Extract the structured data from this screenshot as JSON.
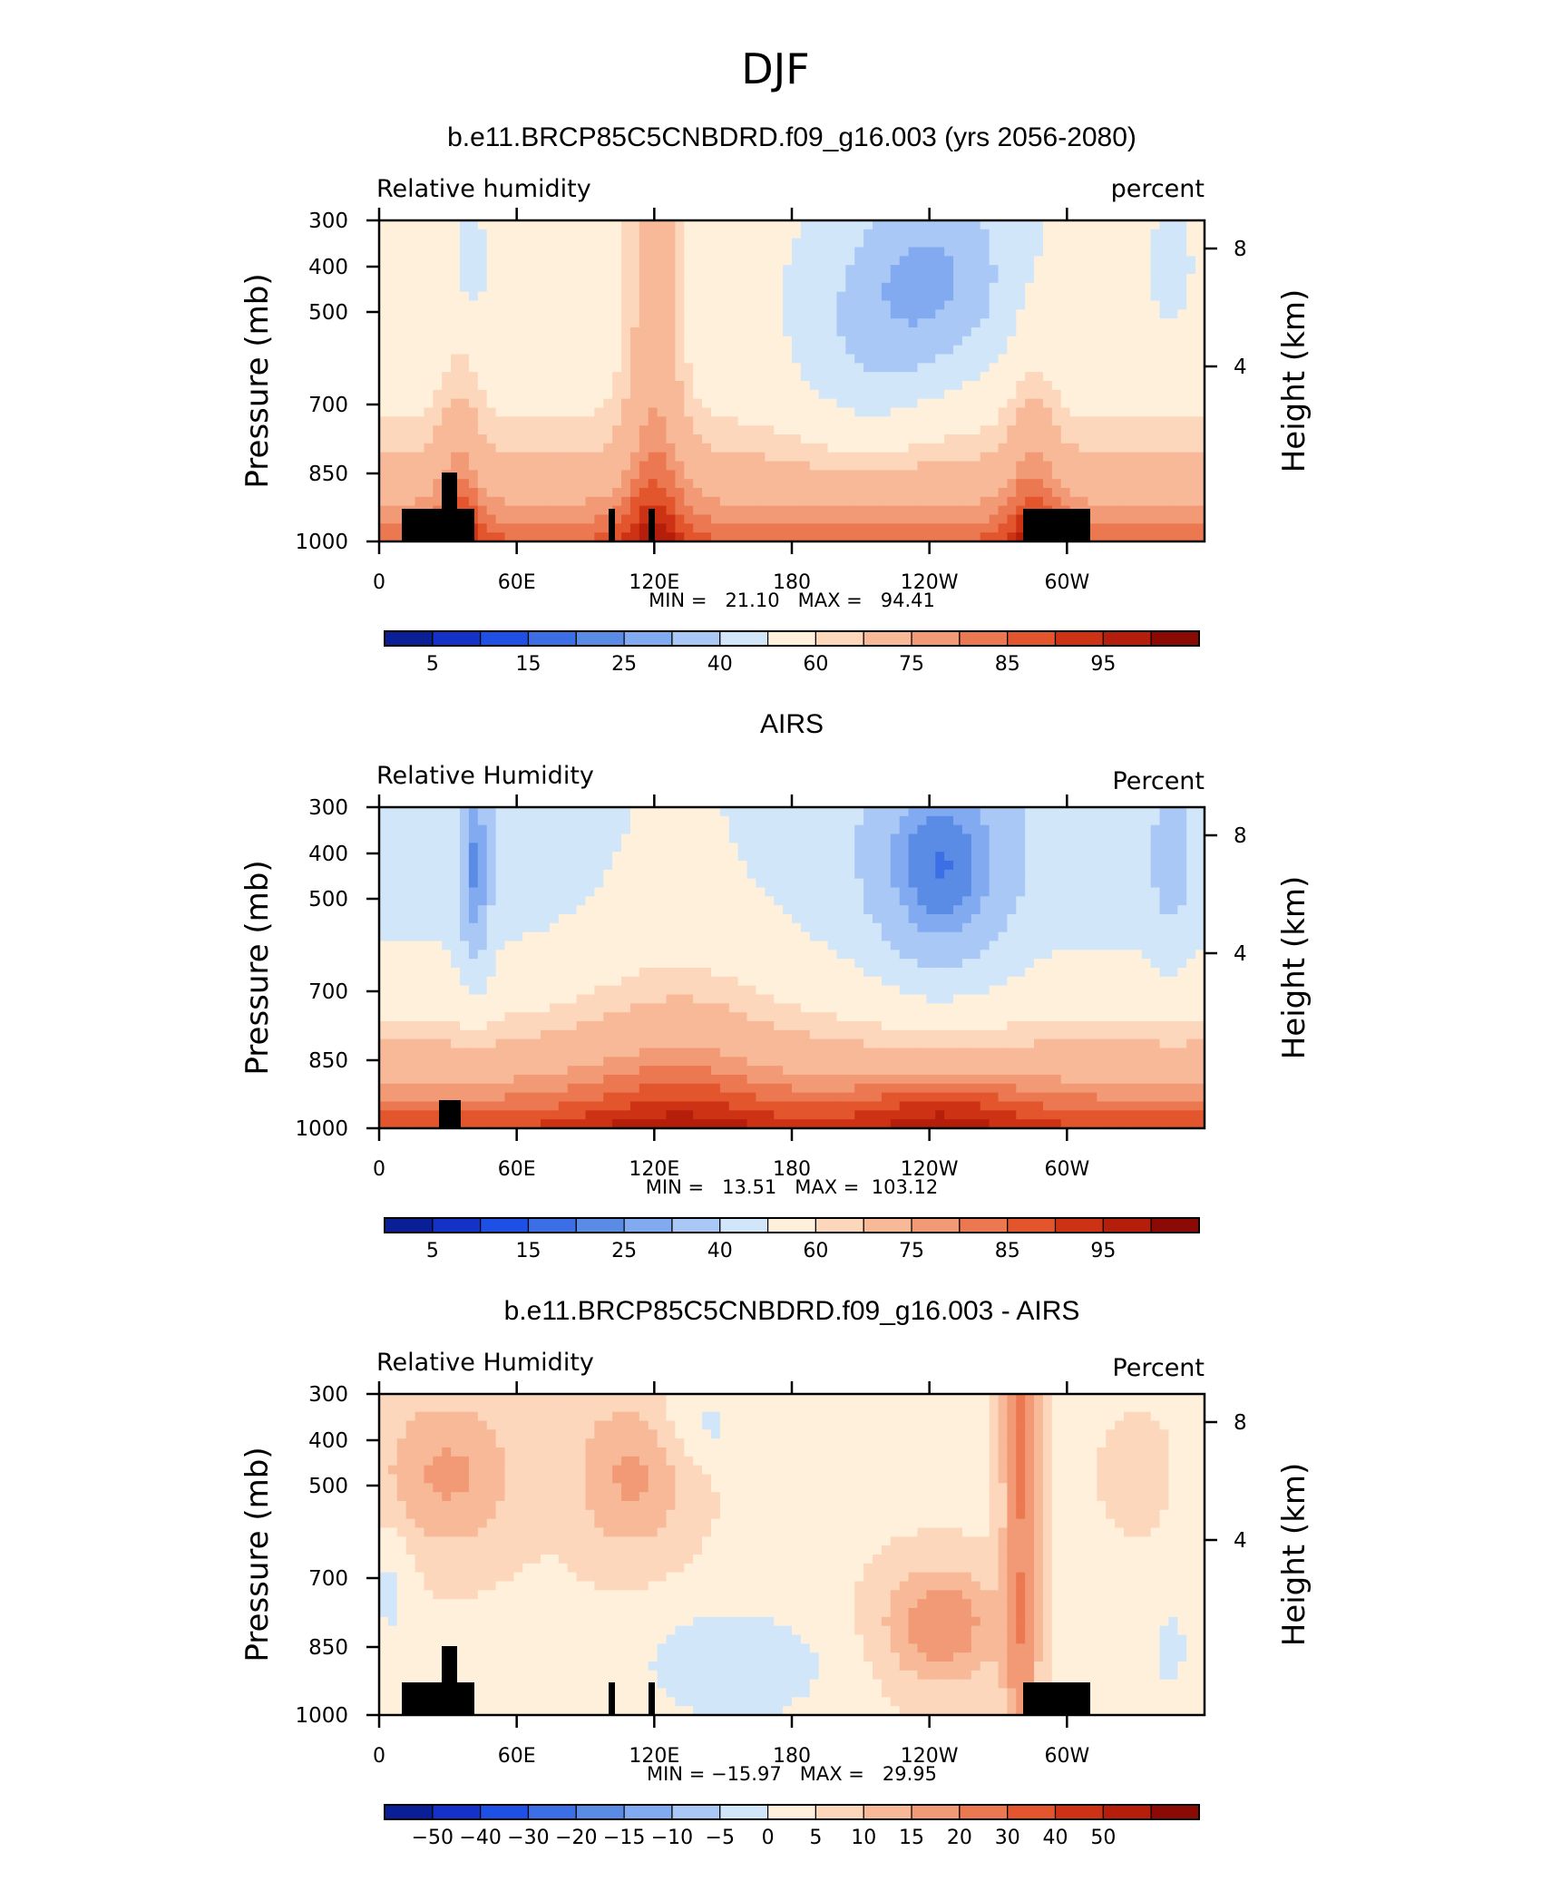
{
  "figure_title": "DJF",
  "colors": {
    "rh": [
      "#0a1e96",
      "#1432c8",
      "#1e50e6",
      "#3c6ee6",
      "#5a8ce6",
      "#82aaf0",
      "#aac8f5",
      "#d2e6fa",
      "#fff0dc",
      "#fcd7bc",
      "#f7b998",
      "#f29a76",
      "#eb7850",
      "#e2552d",
      "#cd3214",
      "#b41e0a",
      "#8c0a05"
    ],
    "diff": [
      "#0a1e96",
      "#1432c8",
      "#1e50e6",
      "#3c6ee6",
      "#5a8ce6",
      "#82aaf0",
      "#aac8f5",
      "#d2e6fa",
      "#fff0dc",
      "#fcd7bc",
      "#f7b998",
      "#f29a76",
      "#eb7850",
      "#e2552d",
      "#cd3214",
      "#b41e0a",
      "#8c0a05"
    ]
  },
  "chart_data": [
    {
      "type": "heatmap",
      "title": "b.e11.BRCP85C5CNBDRD.f09_g16.003 (yrs 2056-2080)",
      "left_label": "Relative humidity",
      "right_label": "percent",
      "ylabel": "Pressure (mb)",
      "ylabel_right": "Height (km)",
      "x_ticks": [
        "0",
        "60E",
        "120E",
        "180",
        "120W",
        "60W"
      ],
      "y_ticks": [
        "300",
        "400",
        "500",
        "700",
        "850",
        "1000"
      ],
      "y_right_ticks": [
        "8",
        "4"
      ],
      "stats": "MIN =   21.10   MAX =   94.41",
      "colorbar_ticks": [
        "5",
        "15",
        "25",
        "40",
        "60",
        "75",
        "85",
        "95"
      ],
      "min": 21.1,
      "max": 94.41,
      "ylim": [
        1000,
        300
      ]
    },
    {
      "type": "heatmap",
      "title": "AIRS",
      "left_label": "Relative Humidity",
      "right_label": "Percent",
      "ylabel": "Pressure (mb)",
      "ylabel_right": "Height (km)",
      "x_ticks": [
        "0",
        "60E",
        "120E",
        "180",
        "120W",
        "60W"
      ],
      "y_ticks": [
        "300",
        "400",
        "500",
        "700",
        "850",
        "1000"
      ],
      "y_right_ticks": [
        "8",
        "4"
      ],
      "stats": "MIN =   13.51   MAX =  103.12",
      "colorbar_ticks": [
        "5",
        "15",
        "25",
        "40",
        "60",
        "75",
        "85",
        "95"
      ],
      "min": 13.51,
      "max": 103.12,
      "ylim": [
        1000,
        300
      ]
    },
    {
      "type": "heatmap",
      "title": "b.e11.BRCP85C5CNBDRD.f09_g16.003 - AIRS",
      "left_label": "Relative Humidity",
      "right_label": "Percent",
      "ylabel": "Pressure (mb)",
      "ylabel_right": "Height (km)",
      "x_ticks": [
        "0",
        "60E",
        "120E",
        "180",
        "120W",
        "60W"
      ],
      "y_ticks": [
        "300",
        "400",
        "500",
        "700",
        "850",
        "1000"
      ],
      "y_right_ticks": [
        "8",
        "4"
      ],
      "stats": "MIN = −15.97   MAX =   29.95",
      "colorbar_ticks": [
        "−50",
        "−40",
        "−30",
        "−20",
        "−15",
        "−10",
        "−5",
        "0",
        "5",
        "10",
        "15",
        "20",
        "30",
        "40",
        "50"
      ],
      "min": -15.97,
      "max": 29.95,
      "ylim": [
        1000,
        300
      ]
    }
  ]
}
